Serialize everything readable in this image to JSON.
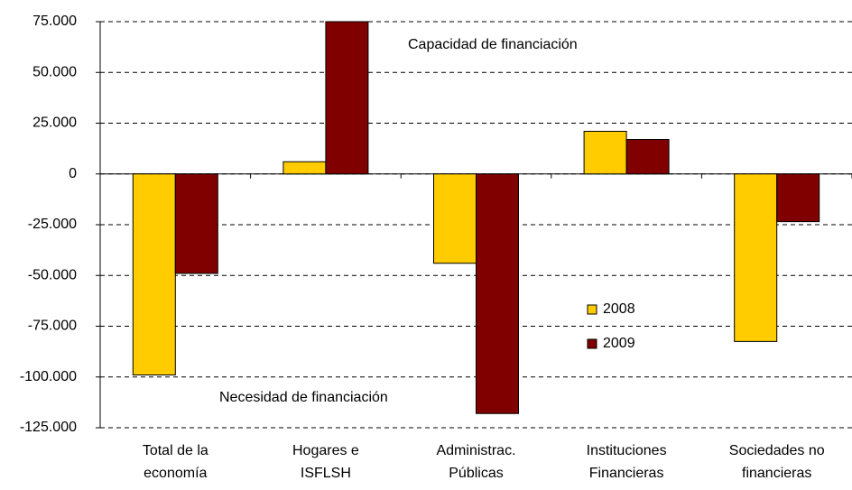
{
  "chart_data": {
    "type": "bar",
    "categories": [
      [
        "Total de la",
        "economía"
      ],
      [
        "Hogares e",
        "ISFLSH"
      ],
      [
        "Administrac.",
        "Públicas"
      ],
      [
        "Instituciones",
        "Financieras"
      ],
      [
        "Sociedades no",
        "financieras"
      ]
    ],
    "series": [
      {
        "name": "2008",
        "color": "#ffcc00",
        "values": [
          -99000,
          6000,
          -44000,
          21000,
          -82500
        ]
      },
      {
        "name": "2009",
        "color": "#800000",
        "values": [
          -49000,
          75000,
          -118000,
          17000,
          -23500
        ]
      }
    ],
    "ylim": [
      -125000,
      75000
    ],
    "yticks": [
      {
        "value": -125000,
        "label": "-125.000"
      },
      {
        "value": -100000,
        "label": "-100.000"
      },
      {
        "value": -75000,
        "label": "-75.000"
      },
      {
        "value": -50000,
        "label": "-50.000"
      },
      {
        "value": -25000,
        "label": "-25.000"
      },
      0,
      {
        "value": 25000,
        "label": "25.000"
      },
      {
        "value": 50000,
        "label": "50.000"
      },
      {
        "value": 75000,
        "label": "75.000"
      }
    ],
    "grid": true,
    "annotations": [
      "Capacidad de financiación",
      "Necesidad de financiación"
    ]
  }
}
